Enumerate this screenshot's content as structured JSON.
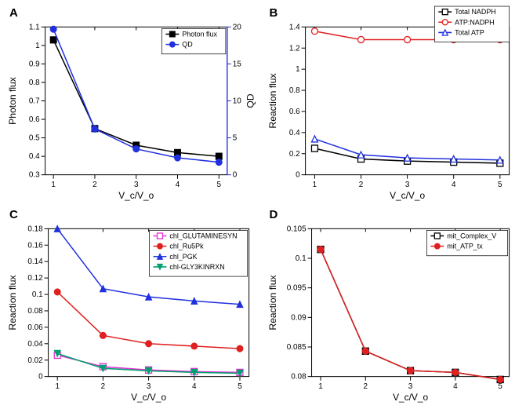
{
  "panels": {
    "A": {
      "label": "A",
      "xlabel": "V_c/V_o",
      "ylabel_left": "Photon flux",
      "ylabel_right": "QD",
      "x": [
        1,
        2,
        3,
        4,
        5
      ],
      "xlim": [
        0.8,
        5.2
      ],
      "left": {
        "ylim": [
          0.3,
          1.1
        ],
        "ticks": [
          0.3,
          0.4,
          0.5,
          0.6,
          0.7,
          0.8,
          0.9,
          1.0,
          1.1
        ],
        "color": "#000000",
        "series": {
          "name": "Photon flux",
          "marker": "square",
          "color": "#000000",
          "y": [
            1.03,
            0.55,
            0.46,
            0.42,
            0.4
          ]
        }
      },
      "right": {
        "ylim": [
          0,
          20
        ],
        "ticks": [
          0,
          5,
          10,
          15,
          20
        ],
        "color": "#2030e0",
        "series": {
          "name": "QD",
          "marker": "circle",
          "color": "#2030e0",
          "y": [
            19.7,
            6.2,
            3.5,
            2.3,
            1.7
          ]
        }
      },
      "legend": [
        "Photon flux",
        "QD"
      ]
    },
    "B": {
      "label": "B",
      "xlabel": "V_c/V_o",
      "ylabel": "Reaction flux",
      "x": [
        1,
        2,
        3,
        4,
        5
      ],
      "xlim": [
        0.8,
        5.2
      ],
      "ylim": [
        0.0,
        1.4
      ],
      "yticks": [
        0.0,
        0.2,
        0.4,
        0.6,
        0.8,
        1.0,
        1.2,
        1.4
      ],
      "series": [
        {
          "name": "Total NADPH",
          "marker": "square-open",
          "color": "#000000",
          "y": [
            0.25,
            0.15,
            0.13,
            0.12,
            0.11
          ]
        },
        {
          "name": "ATP:NADPH",
          "marker": "circle-open",
          "color": "#e02020",
          "y": [
            1.36,
            1.28,
            1.28,
            1.28,
            1.28
          ]
        },
        {
          "name": "Total ATP",
          "marker": "triangle-open",
          "color": "#2030e0",
          "y": [
            0.34,
            0.19,
            0.16,
            0.15,
            0.14
          ]
        }
      ],
      "legend": [
        "Total NADPH",
        "ATP:NADPH",
        "Total ATP"
      ]
    },
    "C": {
      "label": "C",
      "xlabel": "V_c/V_o",
      "ylabel": "Reaction flux",
      "x": [
        1,
        2,
        3,
        4,
        5
      ],
      "xlim": [
        0.8,
        5.2
      ],
      "ylim": [
        0.0,
        0.18
      ],
      "yticks": [
        0.0,
        0.02,
        0.04,
        0.06,
        0.08,
        0.1,
        0.12,
        0.14,
        0.16,
        0.18
      ],
      "series": [
        {
          "name": "chl_GLUTAMINESYN",
          "marker": "square-open",
          "color": "#e030d0",
          "y": [
            0.026,
            0.012,
            0.008,
            0.006,
            0.005
          ]
        },
        {
          "name": "chl_Ru5Pk",
          "marker": "circle",
          "color": "#e02020",
          "y": [
            0.103,
            0.05,
            0.04,
            0.037,
            0.034
          ]
        },
        {
          "name": "chl_PGK",
          "marker": "triangle",
          "color": "#2030e0",
          "y": [
            0.18,
            0.107,
            0.097,
            0.092,
            0.088
          ]
        },
        {
          "name": "chl-GLY3KINRXN",
          "marker": "triangle-down",
          "color": "#00a070",
          "y": [
            0.028,
            0.01,
            0.007,
            0.005,
            0.004
          ]
        }
      ],
      "legend": [
        "chl_GLUTAMINESYN",
        "chl_Ru5Pk",
        "chl_PGK",
        "chl-GLY3KINRXN"
      ]
    },
    "D": {
      "label": "D",
      "xlabel": "V_c/V_o",
      "ylabel": "Reaction flux",
      "x": [
        1,
        2,
        3,
        4,
        5
      ],
      "xlim": [
        0.8,
        5.2
      ],
      "ylim": [
        0.08,
        0.105
      ],
      "yticks": [
        0.08,
        0.085,
        0.09,
        0.095,
        0.1,
        0.105
      ],
      "series": [
        {
          "name": "mit_Complex_V",
          "marker": "square-open",
          "color": "#000000",
          "y": [
            0.1015,
            0.0843,
            0.081,
            0.0807,
            0.0795
          ]
        },
        {
          "name": "mit_ATP_tx",
          "marker": "circle",
          "color": "#e02020",
          "y": [
            0.1015,
            0.0843,
            0.081,
            0.0807,
            0.0795
          ]
        }
      ],
      "legend": [
        "mit_Complex_V",
        "mit_ATP_tx"
      ]
    }
  }
}
